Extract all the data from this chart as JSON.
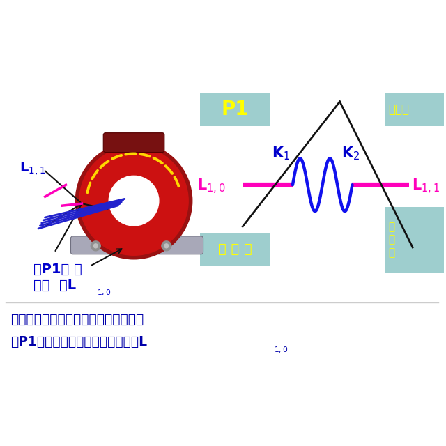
{
  "bg_color": "#ffffff",
  "title_text1": "电流互感器的一次测中的头尾端判断：",
  "title_text2": "从P1端穿入的为一次测的头，即为L",
  "title_sub": "1,0",
  "pink_color": "#FF00BB",
  "blue_color": "#0000CC",
  "dark_blue": "#000080",
  "yellow_color": "#FFFF00",
  "box_color": "#9ECECE",
  "text_blue": "#0000AA",
  "wave_color": "#1111EE",
  "black": "#111111",
  "transformer_red": "#CC1111",
  "transformer_dark": "#8B0000",
  "base_gray": "#A8A8B8",
  "dashed_yellow": "#FFD700",
  "screw_gray": "#909090"
}
